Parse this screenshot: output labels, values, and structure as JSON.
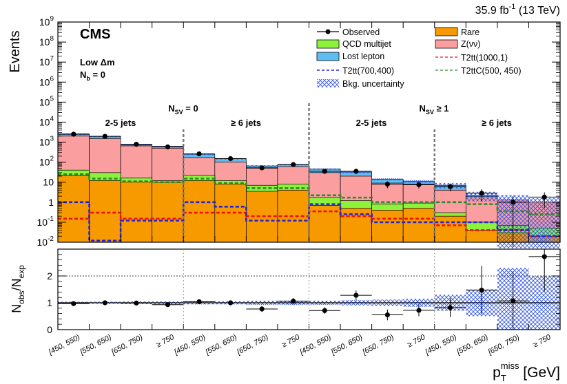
{
  "chart_data": {
    "type": "bar",
    "lumi": {
      "value": "35.9 fb",
      "sup": "-1",
      "energy": " (13 TeV)"
    },
    "experiment": "CMS",
    "region": {
      "line1": "Low  Δm",
      "line2_main": "N",
      "line2_sub": "b",
      "line2_rest": " = 0"
    },
    "groups": [
      {
        "main": "N",
        "sub": "SV",
        "rest": " = 0"
      },
      {
        "main": "N",
        "sub": "SV",
        "rest": " ≥ 1"
      }
    ],
    "jet_bins": [
      "2-5 jets",
      "≥ 6 jets",
      "2-5 jets",
      "≥ 6 jets"
    ],
    "ylabel": "Events",
    "ratio_ylabel": {
      "num_main": "N",
      "num_sub": "obs",
      "den_main": "N",
      "den_sub": "exp"
    },
    "xlabel": {
      "main": "p",
      "sub": "T",
      "sup": "miss",
      "unit": " [GeV]"
    },
    "categories": [
      "[450, 550)",
      "[550, 650)",
      "[650, 750)",
      "≥ 750",
      "[450, 550)",
      "[550, 650)",
      "[650, 750)",
      "≥ 750",
      "[450, 550)",
      "[550, 650)",
      "[650, 750)",
      "≥ 750",
      "[450, 550)",
      "[550, 650)",
      "[650, 750)",
      "≥ 750"
    ],
    "y_ticks": [
      {
        "v": 0.01,
        "base": "10",
        "exp": "-2"
      },
      {
        "v": 0.1,
        "base": "10",
        "exp": "-1"
      },
      {
        "v": 1,
        "base": "1",
        "exp": ""
      },
      {
        "v": 10,
        "base": "10",
        "exp": ""
      },
      {
        "v": 100,
        "base": "10",
        "exp": "2"
      },
      {
        "v": 1000,
        "base": "10",
        "exp": "3"
      },
      {
        "v": 10000,
        "base": "10",
        "exp": "4"
      },
      {
        "v": 100000,
        "base": "10",
        "exp": "5"
      },
      {
        "v": 1000000,
        "base": "10",
        "exp": "6"
      },
      {
        "v": 10000000,
        "base": "10",
        "exp": "7"
      },
      {
        "v": 100000000,
        "base": "10",
        "exp": "8"
      },
      {
        "v": 1000000000,
        "base": "10",
        "exp": "9"
      }
    ],
    "ylim": [
      0.01,
      1000000000
    ],
    "yscale": "log",
    "ratio_ylim": [
      0,
      3
    ],
    "ratio_ticks": [
      "0",
      "1",
      "2"
    ],
    "legend": {
      "observed": "Observed",
      "rare": "Rare",
      "qcd": "QCD multijet",
      "znunu": "Z(νν)",
      "lostlep": "Lost lepton",
      "t2tt_1000": "T2tt(1000,1)",
      "t2tt_700": "T2tt(700,400)",
      "t2ttc": "T2ttC(500, 450)",
      "unc": "Bkg. uncertainty"
    },
    "colors": {
      "rare": "#f79a00",
      "qcd": "#8cf23c",
      "znunu": "#fa9ea0",
      "lostlep": "#5ebef2",
      "t2tt_1000": "#ee1111",
      "t2tt_700": "#2222dd",
      "t2ttc": "#2a8a2a",
      "unc": "#3355dd"
    },
    "series": {
      "rare": [
        22,
        12,
        10,
        10,
        12,
        8,
        3.5,
        4,
        0.7,
        0.5,
        0.4,
        0.5,
        0.2,
        0.04,
        0.03,
        0.02
      ],
      "qcd": [
        40,
        30,
        16,
        12,
        22,
        12,
        7,
        8,
        1.7,
        1.2,
        0.8,
        0.9,
        0.3,
        0.1,
        0.07,
        0.05
      ],
      "znunu": [
        2000,
        1500,
        650,
        500,
        170,
        100,
        50,
        60,
        30,
        20,
        9,
        8,
        4,
        1.9,
        1.3,
        1.0
      ],
      "lostlep": [
        2600,
        1950,
        750,
        620,
        250,
        150,
        65,
        75,
        45,
        32,
        14,
        11,
        7,
        2.2,
        1.0,
        0.8
      ],
      "t2tt_1000": [
        0.15,
        0.3,
        0.15,
        0.15,
        0.3,
        0.3,
        0.2,
        0.2,
        0.35,
        0.2,
        0.15,
        0.15,
        0.07,
        0.04,
        0.04,
        0.02
      ],
      "t2tt_700": [
        1,
        0.012,
        0.12,
        0.12,
        1,
        0.6,
        0.12,
        0.12,
        0.8,
        0.25,
        0.1,
        0.1,
        0.1,
        0.1,
        0.04,
        0.02
      ],
      "t2ttc": [
        25,
        15,
        11,
        10,
        15,
        9,
        5,
        5,
        2.2,
        1.7,
        1.0,
        1.0,
        1.0,
        0.8,
        0.35,
        0.25
      ]
    },
    "observed": [
      2500,
      1950,
      780,
      580,
      260,
      150,
      52,
      76,
      35,
      35,
      8,
      7.5,
      6,
      2.8,
      1.0,
      1.8
    ],
    "observed_err": [
      50,
      44,
      28,
      24,
      16,
      12,
      7,
      9,
      6,
      6,
      3,
      2.7,
      2.5,
      1.7,
      1,
      1.3
    ],
    "ratio": [
      0.97,
      1.0,
      0.99,
      0.93,
      1.04,
      1.0,
      0.77,
      1.06,
      0.71,
      1.28,
      0.55,
      0.72,
      0.82,
      1.47,
      1.07,
      2.72
    ],
    "ratio_err": [
      0.03,
      0.03,
      0.04,
      0.04,
      0.07,
      0.08,
      0.11,
      0.12,
      0.12,
      0.18,
      0.2,
      0.22,
      0.35,
      0.9,
      1.1,
      1.3
    ],
    "ratio_unc": [
      0.04,
      0.04,
      0.05,
      0.05,
      0.06,
      0.06,
      0.08,
      0.08,
      0.08,
      0.1,
      0.12,
      0.15,
      0.3,
      0.5,
      1.3,
      1.0
    ]
  }
}
